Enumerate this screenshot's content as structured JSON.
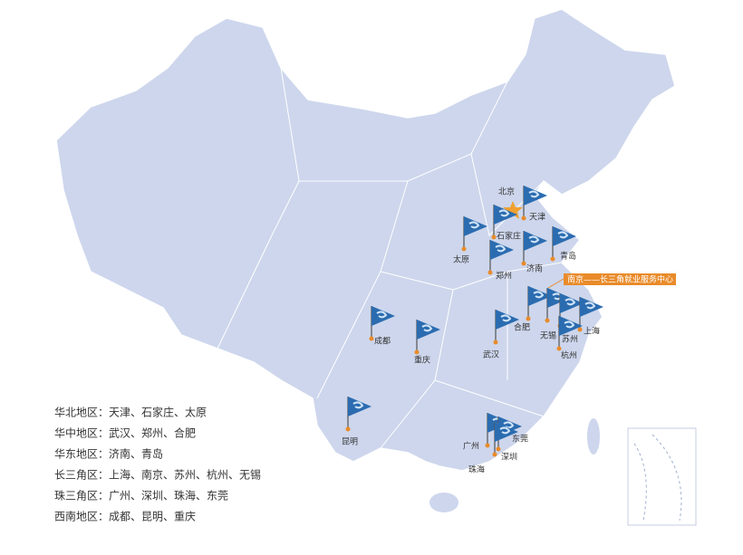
{
  "map": {
    "cities": [
      "北京",
      "天津",
      "石家庄",
      "太原",
      "郑州",
      "济南",
      "青岛",
      "合肥",
      "无锡",
      "苏州",
      "上海",
      "杭州",
      "武汉",
      "成都",
      "重庆",
      "昆明",
      "广州",
      "东莞",
      "深圳",
      "珠海"
    ],
    "highlight": "南京——长三角就业服务中心",
    "regions": [
      "华北地区：天津、石家庄、太原",
      "华中地区：武汉、郑州、合肥",
      "华东地区：济南、青岛",
      "长三角区：上海、南京、苏州、杭州、无锡",
      "珠三角区：广州、深圳、珠海、东莞",
      "西南地区：成都、昆明、重庆"
    ]
  }
}
